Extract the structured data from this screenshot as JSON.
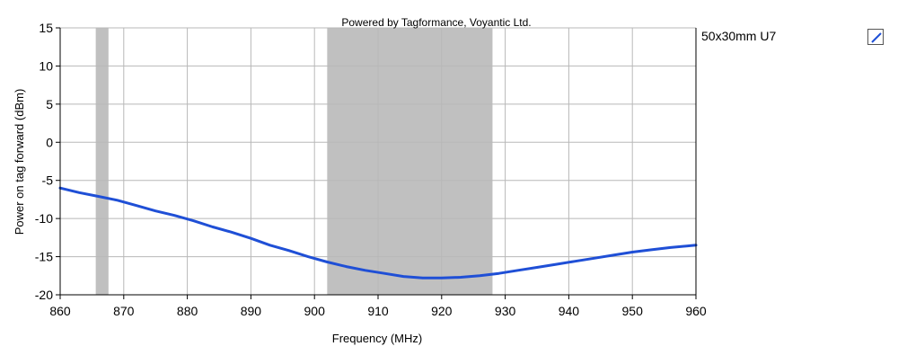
{
  "chart_data": {
    "type": "line",
    "title": "Powered by Tagformance, Voyantic Ltd.",
    "xlabel": "Frequency (MHz)",
    "ylabel": "Power on tag forward (dBm)",
    "xlim": [
      860,
      960
    ],
    "ylim": [
      -20,
      15
    ],
    "x_ticks": [
      860,
      870,
      880,
      890,
      900,
      910,
      920,
      930,
      940,
      950,
      960
    ],
    "y_ticks": [
      15,
      10,
      5,
      0,
      -5,
      -10,
      -15,
      -20
    ],
    "x_tick_labels": [
      "860",
      "870",
      "880",
      "890",
      "900",
      "910",
      "920",
      "930",
      "940",
      "950",
      "960"
    ],
    "y_tick_labels": [
      "15",
      "10",
      "5",
      "0",
      "-5",
      "-10",
      "-15",
      "-20"
    ],
    "grid": true,
    "legend_position": "right",
    "shaded_bands": [
      {
        "x_start": 865.6,
        "x_end": 867.6,
        "color": "#c0c0c0"
      },
      {
        "x_start": 902,
        "x_end": 928,
        "color": "#c0c0c0"
      }
    ],
    "series": [
      {
        "name": "50x30mm U7",
        "color": "#1f4fd6",
        "x": [
          860,
          863,
          866,
          869,
          872,
          875,
          878,
          881,
          884,
          887,
          890,
          893,
          896,
          899,
          902,
          905,
          908,
          911,
          914,
          917,
          920,
          923,
          926,
          929,
          932,
          935,
          938,
          941,
          944,
          947,
          950,
          953,
          956,
          960
        ],
        "y": [
          -6.0,
          -6.6,
          -7.1,
          -7.6,
          -8.3,
          -9.0,
          -9.6,
          -10.3,
          -11.1,
          -11.8,
          -12.6,
          -13.5,
          -14.2,
          -15.0,
          -15.7,
          -16.3,
          -16.8,
          -17.2,
          -17.6,
          -17.8,
          -17.8,
          -17.7,
          -17.5,
          -17.2,
          -16.8,
          -16.4,
          -16.0,
          -15.6,
          -15.2,
          -14.8,
          -14.4,
          -14.1,
          -13.8,
          -13.5
        ]
      }
    ]
  }
}
